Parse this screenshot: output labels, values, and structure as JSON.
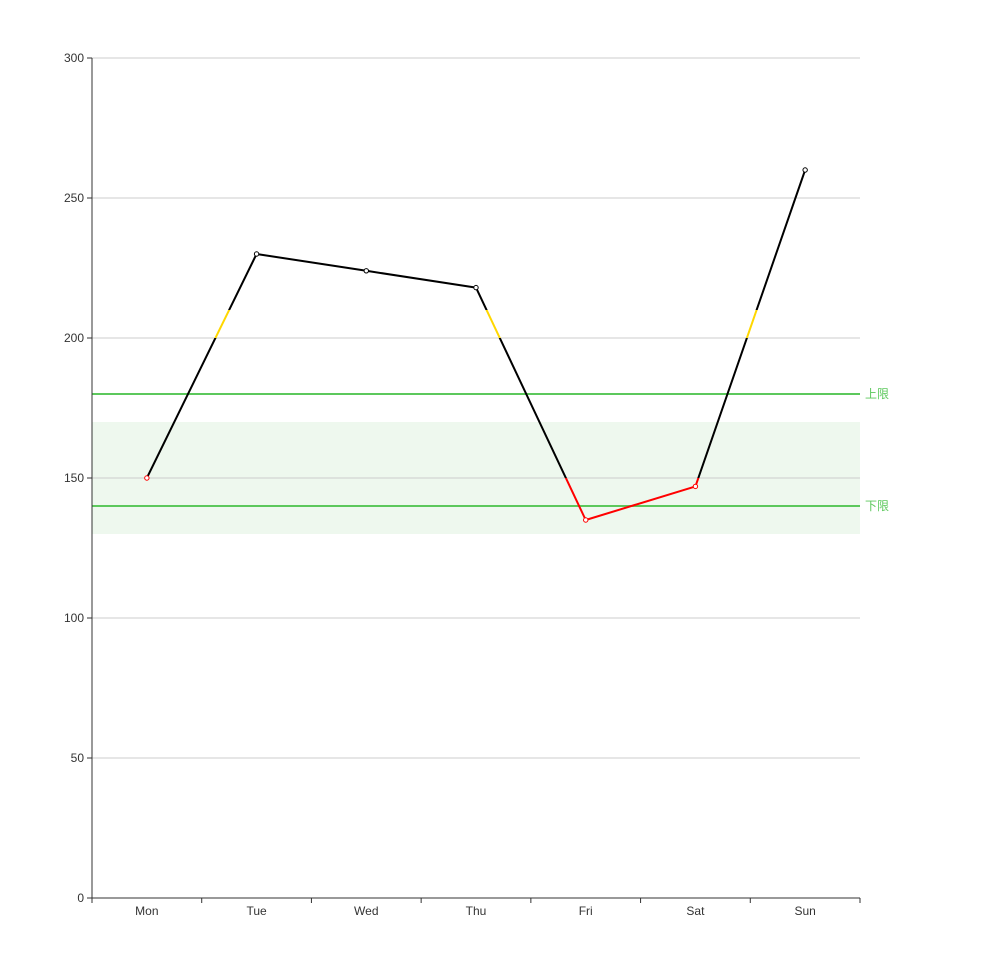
{
  "chart_data": {
    "type": "line",
    "categories": [
      "Mon",
      "Tue",
      "Wed",
      "Thu",
      "Fri",
      "Sat",
      "Sun"
    ],
    "series": [
      {
        "values": [
          150,
          230,
          224,
          218,
          135,
          147,
          260
        ]
      }
    ],
    "ylim": [
      0,
      300
    ],
    "y_ticks": [
      0,
      50,
      100,
      150,
      200,
      250,
      300
    ],
    "grid": true,
    "visual_map": [
      {
        "min": 0,
        "max": 150,
        "color": "#ff0000"
      },
      {
        "min": 150,
        "max": 200,
        "color": "#000000"
      },
      {
        "min": 200,
        "max": 210,
        "color": "#ffd700"
      },
      {
        "min": 210,
        "max": 300,
        "color": "#000000"
      }
    ],
    "mark_area": {
      "y_from": 130,
      "y_to": 170,
      "color": "#eef8ee"
    },
    "mark_lines": [
      {
        "value": 180,
        "label": "上限",
        "color": "#5cc85c"
      },
      {
        "value": 140,
        "label": "下限",
        "color": "#5cc85c"
      }
    ],
    "colors": {
      "axis": "#333333",
      "grid": "#cccccc",
      "symbol_fill": "#ffffff"
    }
  }
}
